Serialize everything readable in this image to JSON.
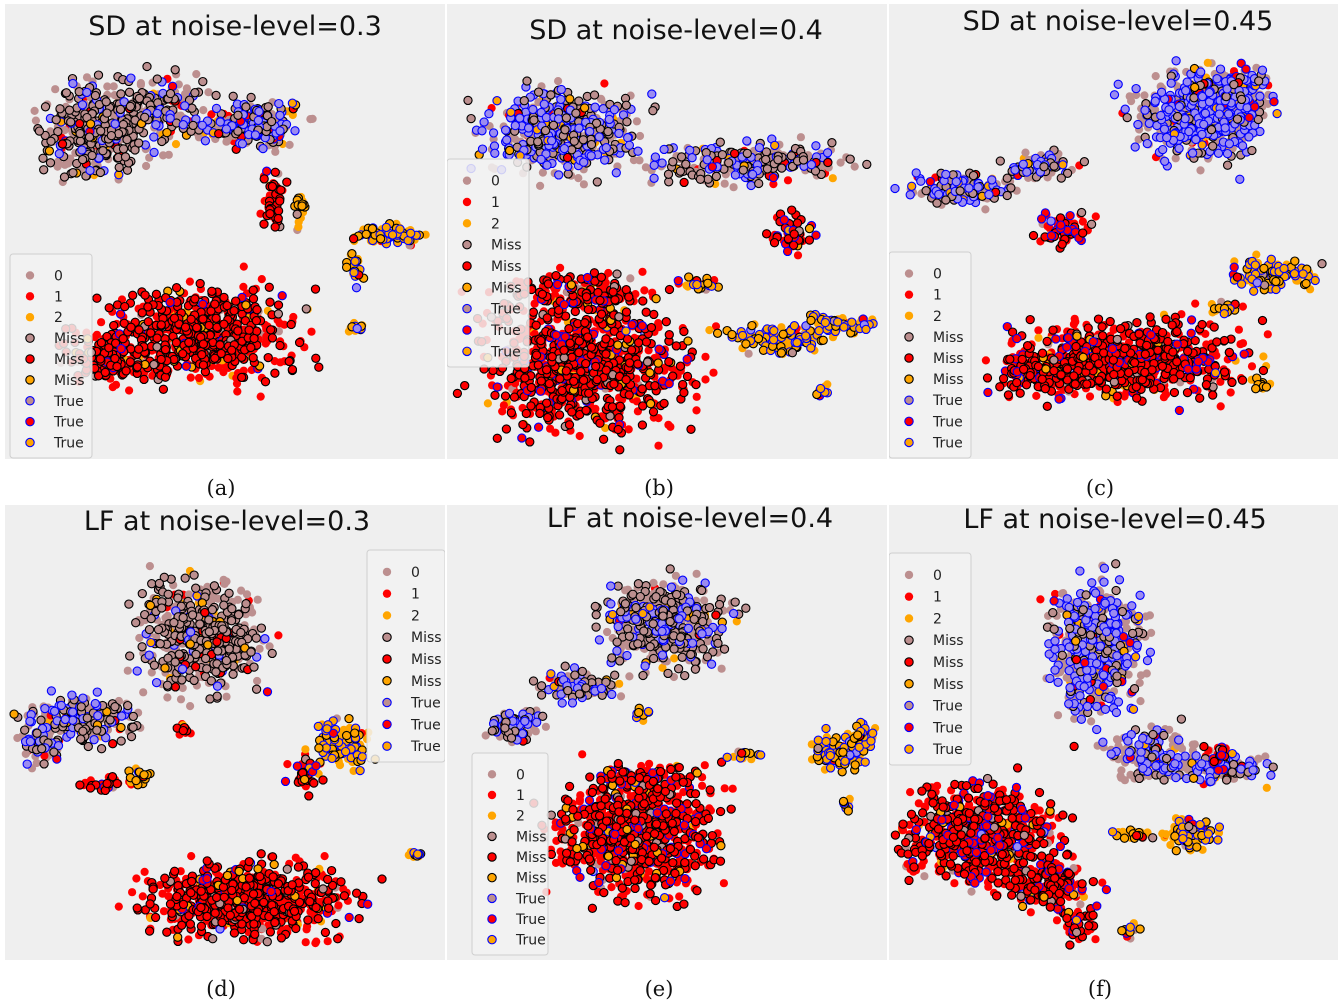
{
  "chart_data": [
    {
      "id": "a",
      "type": "scatter",
      "title": "SD at noise-level=0.3",
      "caption": "(a)",
      "legend": {
        "placement": "lower-left",
        "labels": [
          "0",
          "1",
          "2",
          "Miss",
          "Miss",
          "Miss",
          "True",
          "True",
          "True"
        ]
      }
    },
    {
      "id": "b",
      "type": "scatter",
      "title": "SD at noise-level=0.4",
      "caption": "(b)",
      "legend": {
        "placement": "left",
        "labels": [
          "0",
          "1",
          "2",
          "Miss",
          "Miss",
          "Miss",
          "True",
          "True",
          "True"
        ]
      }
    },
    {
      "id": "c",
      "type": "scatter",
      "title": "SD at noise-level=0.45",
      "caption": "(c)",
      "legend": {
        "placement": "lower-left",
        "labels": [
          "0",
          "1",
          "2",
          "Miss",
          "Miss",
          "Miss",
          "True",
          "True",
          "True"
        ]
      }
    },
    {
      "id": "d",
      "type": "scatter",
      "title": "LF at noise-level=0.3",
      "caption": "(d)",
      "legend": {
        "placement": "upper-right",
        "labels": [
          "0",
          "1",
          "2",
          "Miss",
          "Miss",
          "Miss",
          "True",
          "True",
          "True"
        ]
      }
    },
    {
      "id": "e",
      "type": "scatter",
      "title": "LF at noise-level=0.4",
      "caption": "(e)",
      "legend": {
        "placement": "lower-left",
        "labels": [
          "0",
          "1",
          "2",
          "Miss",
          "Miss",
          "Miss",
          "True",
          "True",
          "True"
        ]
      }
    },
    {
      "id": "f",
      "type": "scatter",
      "title": "LF at noise-level=0.45",
      "caption": "(f)",
      "legend": {
        "placement": "upper-left",
        "labels": [
          "0",
          "1",
          "2",
          "Miss",
          "Miss",
          "Miss",
          "True",
          "True",
          "True"
        ]
      }
    }
  ],
  "legend_style": {
    "0": {
      "fill": "#bc8f8f",
      "edge": "none"
    },
    "1": {
      "fill": "#ff0000",
      "edge": "none"
    },
    "2": {
      "fill": "#ffa500",
      "edge": "none"
    },
    "miss": [
      {
        "fill": "#bc8f8f",
        "edge": "#000000"
      },
      {
        "fill": "#ff0000",
        "edge": "#000000"
      },
      {
        "fill": "#ffa500",
        "edge": "#000000"
      }
    ],
    "true": [
      {
        "fill": "#bc8f8f",
        "edge": "#0000ff"
      },
      {
        "fill": "#ff0000",
        "edge": "#0000ff"
      },
      {
        "fill": "#ffa500",
        "edge": "#0000ff"
      }
    ]
  },
  "colors": {
    "axes_bg": "#efefef",
    "class0": "#bc8f8f",
    "class1": "#ff0000",
    "class2": "#ffa500",
    "miss_edge": "#000000",
    "true_edge": "#0000ff",
    "true_fill_light": "#9b8cf0"
  }
}
